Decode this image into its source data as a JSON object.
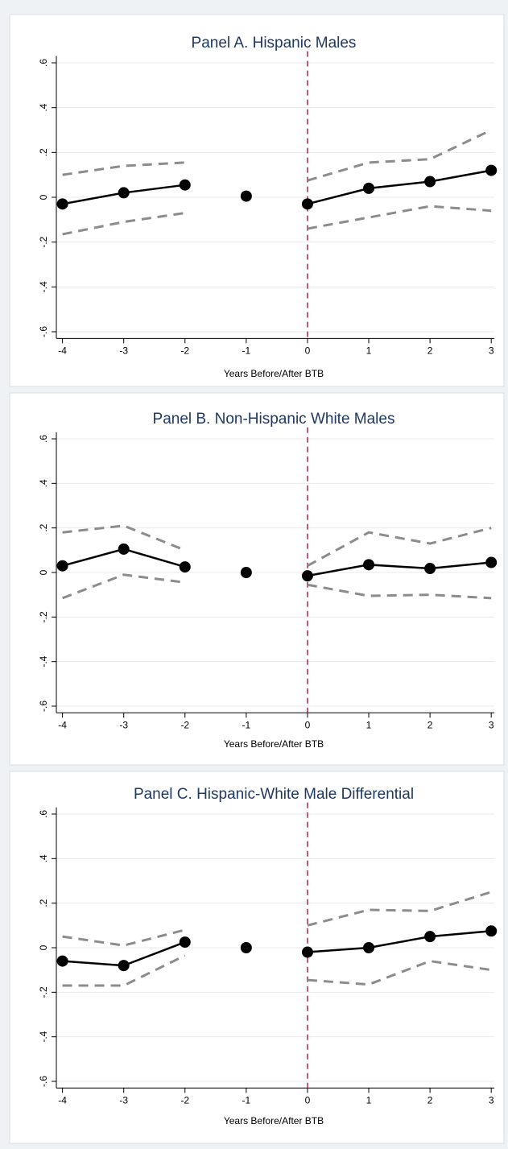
{
  "chart_data": [
    {
      "type": "line",
      "title": "Panel A. Hispanic Males",
      "xlabel": "Years Before/After BTB",
      "ylabel": "",
      "x_ticks": [
        -4,
        -3,
        -2,
        -1,
        0,
        1,
        2,
        3
      ],
      "y_ticks": [
        -0.6,
        -0.4,
        -0.2,
        0,
        0.2,
        0.4,
        0.6
      ],
      "y_tick_labels": [
        "-.6",
        "-.4",
        "-.2",
        "0",
        ".2",
        ".4",
        ".6"
      ],
      "ylim": [
        -0.63,
        0.63
      ],
      "xlim": [
        -4.1,
        3.05
      ],
      "vline_x": 0,
      "grid": true,
      "series": [
        {
          "role": "estimate",
          "segments": [
            {
              "x": [
                -4,
                -3,
                -2
              ],
              "y": [
                -0.03,
                0.02,
                0.055
              ]
            },
            {
              "x": [
                -1
              ],
              "y": [
                0.005
              ]
            },
            {
              "x": [
                0,
                1,
                2,
                3
              ],
              "y": [
                -0.03,
                0.04,
                0.07,
                0.12
              ]
            }
          ]
        },
        {
          "role": "upper_ci",
          "segments": [
            {
              "x": [
                -4,
                -3,
                -2
              ],
              "y": [
                0.1,
                0.14,
                0.155
              ]
            },
            {
              "x": [
                0,
                1,
                2,
                3
              ],
              "y": [
                0.075,
                0.155,
                0.17,
                0.3
              ]
            }
          ]
        },
        {
          "role": "lower_ci",
          "segments": [
            {
              "x": [
                -4,
                -3,
                -2
              ],
              "y": [
                -0.165,
                -0.11,
                -0.07
              ]
            },
            {
              "x": [
                0,
                1,
                2,
                3
              ],
              "y": [
                -0.14,
                -0.09,
                -0.04,
                -0.06
              ]
            }
          ]
        }
      ]
    },
    {
      "type": "line",
      "title": "Panel B. Non-Hispanic White Males",
      "xlabel": "Years Before/After BTB",
      "ylabel": "",
      "x_ticks": [
        -4,
        -3,
        -2,
        -1,
        0,
        1,
        2,
        3
      ],
      "y_ticks": [
        -0.6,
        -0.4,
        -0.2,
        0,
        0.2,
        0.4,
        0.6
      ],
      "y_tick_labels": [
        "-.6",
        "-.4",
        "-.2",
        "0",
        ".2",
        ".4",
        ".6"
      ],
      "ylim": [
        -0.63,
        0.63
      ],
      "xlim": [
        -4.1,
        3.05
      ],
      "vline_x": 0,
      "grid": true,
      "series": [
        {
          "role": "estimate",
          "segments": [
            {
              "x": [
                -4,
                -3,
                -2
              ],
              "y": [
                0.03,
                0.105,
                0.025
              ]
            },
            {
              "x": [
                -1
              ],
              "y": [
                0.0
              ]
            },
            {
              "x": [
                0,
                1,
                2,
                3
              ],
              "y": [
                -0.015,
                0.035,
                0.018,
                0.045
              ]
            }
          ]
        },
        {
          "role": "upper_ci",
          "segments": [
            {
              "x": [
                -4,
                -3,
                -2
              ],
              "y": [
                0.18,
                0.21,
                0.1
              ]
            },
            {
              "x": [
                0,
                1,
                2,
                3
              ],
              "y": [
                0.03,
                0.18,
                0.13,
                0.2
              ]
            }
          ]
        },
        {
          "role": "lower_ci",
          "segments": [
            {
              "x": [
                -4,
                -3,
                -2
              ],
              "y": [
                -0.115,
                -0.01,
                -0.045
              ]
            },
            {
              "x": [
                0,
                1,
                2,
                3
              ],
              "y": [
                -0.055,
                -0.105,
                -0.1,
                -0.115
              ]
            }
          ]
        }
      ]
    },
    {
      "type": "line",
      "title": "Panel C. Hispanic-White Male Differential",
      "xlabel": "Years Before/After BTB",
      "ylabel": "",
      "x_ticks": [
        -4,
        -3,
        -2,
        -1,
        0,
        1,
        2,
        3
      ],
      "y_ticks": [
        -0.6,
        -0.4,
        -0.2,
        0,
        0.2,
        0.4,
        0.6
      ],
      "y_tick_labels": [
        "-.6",
        "-.4",
        "-.2",
        "0",
        ".2",
        ".4",
        ".6"
      ],
      "ylim": [
        -0.63,
        0.63
      ],
      "xlim": [
        -4.1,
        3.05
      ],
      "vline_x": 0,
      "grid": true,
      "series": [
        {
          "role": "estimate",
          "segments": [
            {
              "x": [
                -4,
                -3,
                -2
              ],
              "y": [
                -0.06,
                -0.08,
                0.025
              ]
            },
            {
              "x": [
                -1
              ],
              "y": [
                0.0
              ]
            },
            {
              "x": [
                0,
                1,
                2,
                3
              ],
              "y": [
                -0.02,
                0.0,
                0.05,
                0.075
              ]
            }
          ]
        },
        {
          "role": "upper_ci",
          "segments": [
            {
              "x": [
                -4,
                -3,
                -2
              ],
              "y": [
                0.05,
                0.01,
                0.08
              ]
            },
            {
              "x": [
                0,
                1,
                2,
                3
              ],
              "y": [
                0.1,
                0.17,
                0.165,
                0.25
              ]
            }
          ]
        },
        {
          "role": "lower_ci",
          "segments": [
            {
              "x": [
                -4,
                -3,
                -2
              ],
              "y": [
                -0.17,
                -0.17,
                -0.035
              ]
            },
            {
              "x": [
                0,
                1,
                2,
                3
              ],
              "y": [
                -0.145,
                -0.165,
                -0.06,
                -0.1
              ]
            }
          ]
        }
      ]
    }
  ]
}
